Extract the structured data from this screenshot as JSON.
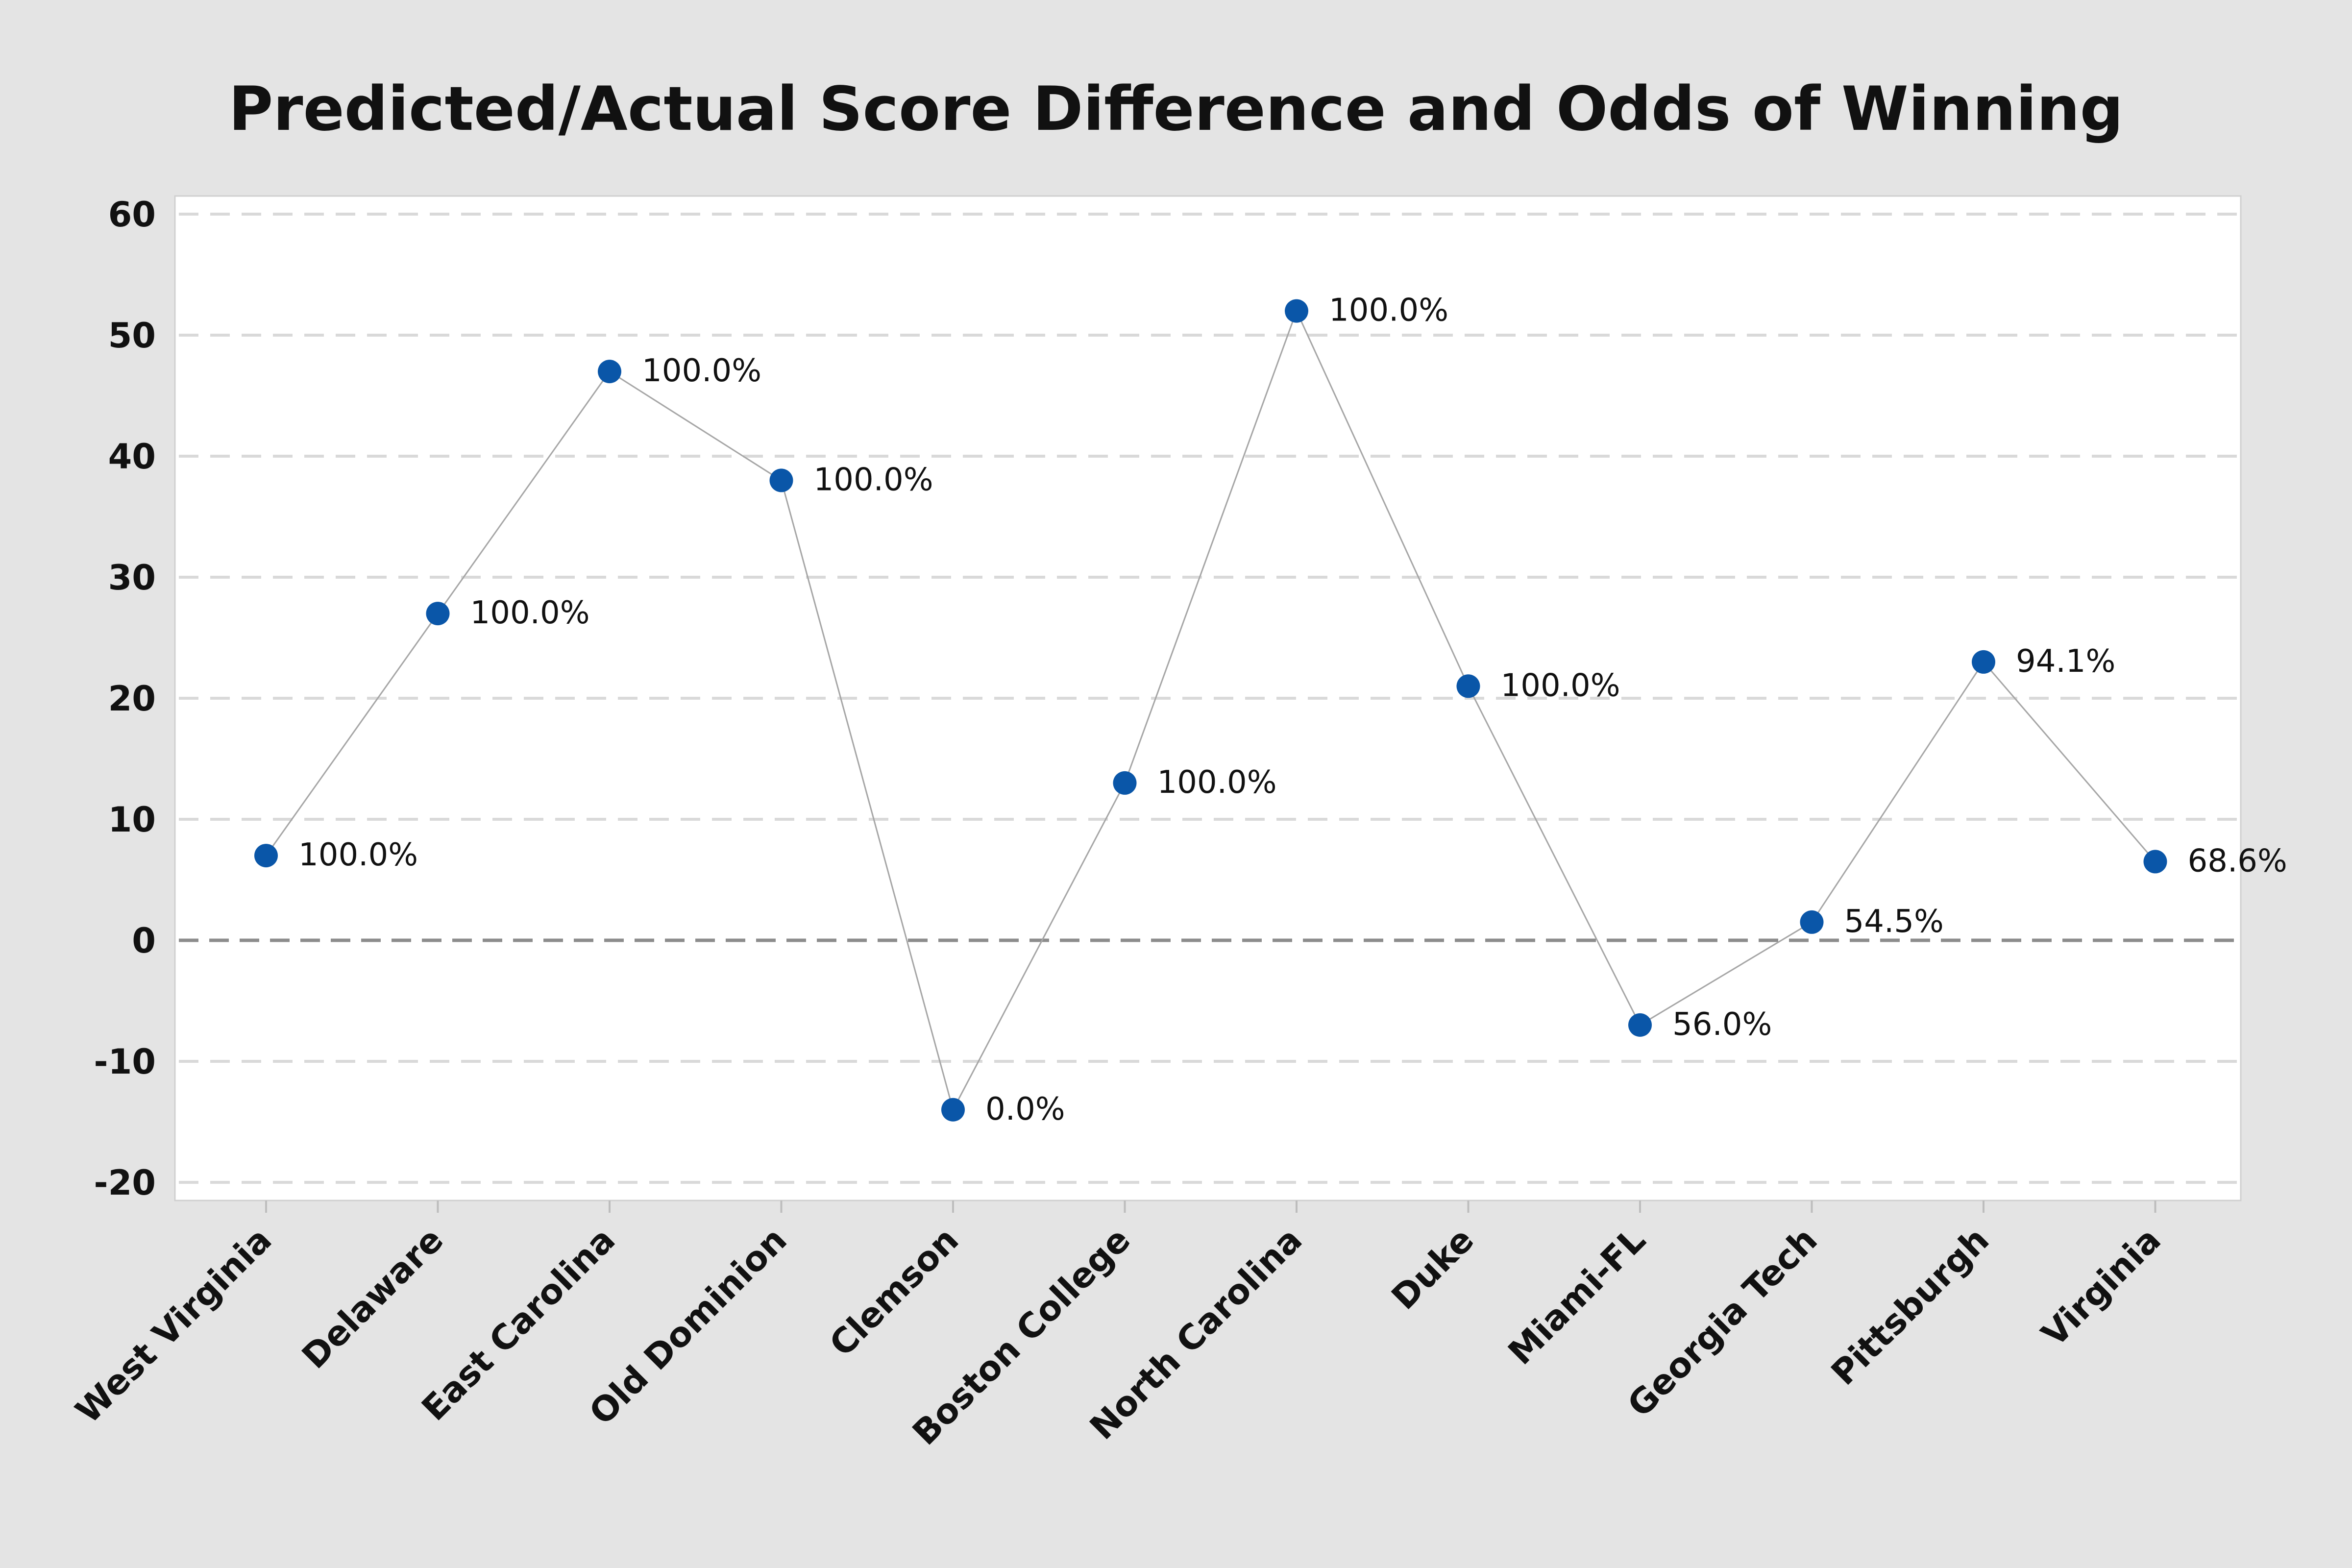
{
  "chart_data": {
    "type": "line",
    "title": "Predicted/Actual Score Difference and Odds of Winning",
    "xlabel": "",
    "ylabel": "",
    "categories": [
      "West Virginia",
      "Delaware",
      "East Carolina",
      "Old Dominion",
      "Clemson",
      "Boston College",
      "North Carolina",
      "Duke",
      "Miami-FL",
      "Georgia Tech",
      "Pittsburgh",
      "Virginia"
    ],
    "values": [
      7,
      27,
      47,
      38,
      -14,
      13,
      52,
      21,
      -7,
      1.5,
      23,
      6.5
    ],
    "data_labels": [
      "100.0%",
      "100.0%",
      "100.0%",
      "100.0%",
      "0.0%",
      "100.0%",
      "100.0%",
      "100.0%",
      "56.0%",
      "54.5%",
      "94.1%",
      "68.6%"
    ],
    "yticks": [
      -20,
      -10,
      0,
      10,
      20,
      30,
      40,
      50,
      60
    ],
    "ytick_labels": [
      "-20",
      "-10",
      "0",
      "10",
      "20",
      "30",
      "40",
      "50",
      "60"
    ],
    "ylim": [
      -21.5,
      61.5
    ],
    "reference_line": 0,
    "grid": true,
    "legend": "none",
    "colors": {
      "marker": "#0a56a8",
      "line": "#a6a6a6",
      "gridline": "#d9d9d9",
      "reference_line": "#8c8c8c",
      "plot_background": "#ffffff",
      "page_background": "#e4e4e4"
    }
  }
}
